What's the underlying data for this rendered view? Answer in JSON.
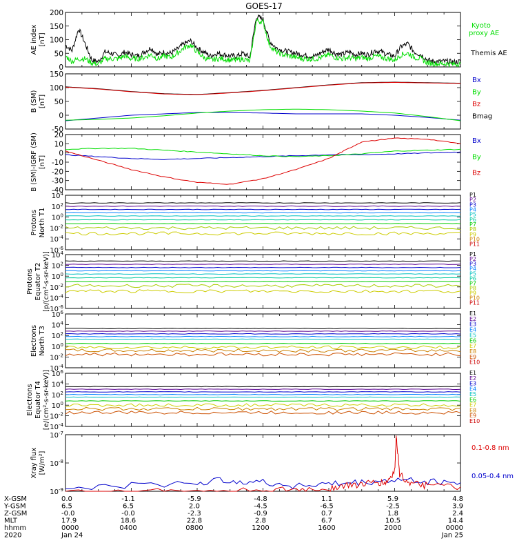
{
  "title": "GOES-17",
  "colors": {
    "black": "#000000",
    "green": "#00dd00",
    "blue": "#0000cc",
    "red": "#dd0000",
    "darkred": "#990000",
    "p_series": [
      "#000000",
      "#5a0090",
      "#0000cc",
      "#0080ff",
      "#00c0c0",
      "#00c8a0",
      "#00cc00",
      "#aacc00",
      "#cccc00",
      "#cc8000",
      "#cc0000"
    ],
    "e_series": [
      "#000000",
      "#5a0090",
      "#0000cc",
      "#0080ff",
      "#00c0c0",
      "#00cc00",
      "#cccc00",
      "#cc8000",
      "#cc5000",
      "#cc0000"
    ]
  },
  "chart_data": [
    {
      "id": "ae",
      "type": "line",
      "ylabel_lines": [
        "AE index",
        "[nT]"
      ],
      "ylim": [
        0,
        200
      ],
      "yticks": [
        "0",
        "50",
        "100",
        "150",
        "200"
      ],
      "legend": [
        {
          "text": "Kyoto",
          "color": "#00dd00"
        },
        {
          "text": "proxy AE",
          "color": "#00dd00"
        },
        {
          "text": "Themis AE",
          "color": "#000000"
        }
      ],
      "series": [
        {
          "name": "Themis AE",
          "color": "#000000",
          "x": [
            0,
            0.4,
            0.8,
            1.2,
            1.6,
            2.0,
            2.4,
            2.8,
            3.2,
            3.6,
            4.0,
            4.4,
            4.8,
            5.2,
            5.6,
            6.0,
            6.4,
            6.8,
            7.2,
            7.6,
            8.0,
            8.4,
            8.8,
            9.2,
            9.6,
            10.0,
            10.4,
            10.8,
            11.2,
            11.6,
            12.0,
            12.4,
            12.8,
            13.2,
            13.6,
            14.0,
            14.4,
            14.8,
            15.2,
            15.6,
            16.0,
            16.4,
            16.8,
            17.2,
            17.6,
            18.0,
            18.4,
            18.8,
            19.2,
            19.6,
            20.0,
            20.4,
            20.8,
            21.2,
            21.6,
            22.0,
            22.4,
            22.8,
            23.2,
            23.6,
            24.0
          ],
          "y": [
            80,
            60,
            140,
            85,
            25,
            20,
            55,
            50,
            40,
            55,
            45,
            40,
            55,
            70,
            45,
            55,
            50,
            65,
            85,
            95,
            70,
            55,
            40,
            50,
            45,
            40,
            40,
            50,
            35,
            185,
            175,
            95,
            70,
            60,
            55,
            50,
            45,
            40,
            40,
            55,
            65,
            50,
            45,
            55,
            45,
            50,
            45,
            60,
            55,
            45,
            40,
            75,
            85,
            55,
            45,
            25,
            20,
            20,
            20,
            18,
            20
          ]
        },
        {
          "name": "Kyoto proxy AE",
          "color": "#00dd00",
          "x": [
            0,
            0.4,
            0.8,
            1.2,
            1.6,
            2.0,
            2.4,
            2.8,
            3.2,
            3.6,
            4.0,
            4.4,
            4.8,
            5.2,
            5.6,
            6.0,
            6.4,
            6.8,
            7.2,
            7.6,
            8.0,
            8.4,
            8.8,
            9.2,
            9.6,
            10.0,
            10.4,
            10.8,
            11.2,
            11.6,
            12.0,
            12.4,
            12.8,
            13.2,
            13.6,
            14.0,
            14.4,
            14.8,
            15.2,
            15.6,
            16.0,
            16.4,
            16.8,
            17.2,
            17.6,
            18.0,
            18.4,
            18.8,
            19.2,
            19.6,
            20.0,
            20.4,
            20.8,
            21.2,
            21.6,
            22.0,
            22.4,
            22.8,
            23.2,
            23.6,
            24.0
          ],
          "y": [
            40,
            20,
            30,
            30,
            15,
            10,
            30,
            30,
            30,
            40,
            30,
            30,
            35,
            45,
            30,
            40,
            35,
            50,
            70,
            80,
            55,
            35,
            25,
            30,
            30,
            25,
            25,
            30,
            20,
            170,
            165,
            80,
            55,
            45,
            40,
            35,
            30,
            30,
            30,
            35,
            45,
            35,
            30,
            35,
            30,
            35,
            30,
            40,
            35,
            30,
            25,
            45,
            50,
            35,
            30,
            15,
            12,
            12,
            12,
            10,
            12
          ]
        }
      ]
    },
    {
      "id": "bsm",
      "type": "line",
      "ylabel_lines": [
        "B (SM)",
        "[nT]"
      ],
      "ylim": [
        -50,
        150
      ],
      "yticks": [
        "-50",
        "0",
        "50",
        "100",
        "150"
      ],
      "legend": [
        {
          "text": "Bx",
          "color": "#0000cc"
        },
        {
          "text": "By",
          "color": "#00dd00"
        },
        {
          "text": "Bz",
          "color": "#dd0000"
        },
        {
          "text": "Bmag",
          "color": "#000000"
        }
      ],
      "series": [
        {
          "name": "Bmag",
          "color": "#000000",
          "x": [
            0,
            2,
            4,
            6,
            8,
            10,
            12,
            14,
            16,
            18,
            20,
            22,
            24
          ],
          "y": [
            103,
            96,
            86,
            78,
            75,
            82,
            90,
            100,
            110,
            118,
            120,
            118,
            116
          ]
        },
        {
          "name": "Bz",
          "color": "#dd0000",
          "x": [
            0,
            2,
            4,
            6,
            8,
            10,
            12,
            14,
            16,
            18,
            20,
            22,
            24
          ],
          "y": [
            102,
            95,
            85,
            77,
            74,
            81,
            89,
            99,
            109,
            117,
            119,
            117,
            115
          ]
        },
        {
          "name": "Bx",
          "color": "#0000cc",
          "x": [
            0,
            2,
            4,
            6,
            8,
            10,
            12,
            14,
            16,
            18,
            20,
            22,
            24
          ],
          "y": [
            -20,
            -10,
            0,
            5,
            10,
            10,
            8,
            5,
            5,
            5,
            0,
            -8,
            -18
          ]
        },
        {
          "name": "By",
          "color": "#00dd00",
          "x": [
            0,
            2,
            4,
            6,
            8,
            10,
            12,
            14,
            16,
            18,
            20,
            22,
            24
          ],
          "y": [
            -18,
            -15,
            -10,
            -2,
            8,
            15,
            20,
            22,
            20,
            15,
            8,
            -5,
            -20
          ]
        }
      ]
    },
    {
      "id": "bigrf",
      "type": "line",
      "ylabel_lines": [
        "B (SM)-IGRF (SM)",
        "[nT]"
      ],
      "ylim": [
        -40,
        20
      ],
      "yticks": [
        "-40",
        "-30",
        "-20",
        "-10",
        "0",
        "10",
        "20"
      ],
      "legend": [
        {
          "text": "Bx",
          "color": "#0000cc"
        },
        {
          "text": "By",
          "color": "#00dd00"
        },
        {
          "text": "Bz",
          "color": "#dd0000"
        }
      ],
      "series": [
        {
          "name": "Bx",
          "color": "#0000cc",
          "x": [
            0,
            2,
            4,
            6,
            8,
            10,
            12,
            14,
            16,
            18,
            20,
            22,
            24
          ],
          "y": [
            -2,
            -4,
            -6,
            -7,
            -6,
            -5,
            -4,
            -3,
            -2,
            -2,
            -1,
            0,
            1
          ]
        },
        {
          "name": "By",
          "color": "#00dd00",
          "x": [
            0,
            2,
            4,
            6,
            8,
            10,
            12,
            14,
            16,
            18,
            20,
            22,
            24
          ],
          "y": [
            4,
            5,
            5,
            3,
            1,
            -1,
            -3,
            -4,
            -3,
            -1,
            2,
            3,
            4
          ]
        },
        {
          "name": "Bz",
          "color": "#dd0000",
          "x": [
            0,
            2,
            4,
            6,
            8,
            10,
            12,
            14,
            16,
            17,
            18,
            20,
            22,
            24
          ],
          "y": [
            2,
            -8,
            -18,
            -26,
            -32,
            -34,
            -28,
            -18,
            -6,
            3,
            12,
            16,
            15,
            10
          ]
        }
      ]
    },
    {
      "id": "protons_t1",
      "type": "line",
      "ylabel_lines": [
        "Protons",
        "North T1"
      ],
      "log": true,
      "ylim_exp": [
        -6,
        4
      ],
      "yticks_exp": [
        -6,
        -4,
        -2,
        0,
        2,
        4
      ],
      "legend_names": [
        "P1",
        "P2",
        "P3",
        "P4",
        "P5",
        "P6",
        "P7",
        "P8",
        "P9",
        "P10",
        "P11"
      ],
      "levels_exp": [
        2.6,
        2.0,
        1.4,
        0.8,
        0.2,
        -0.5,
        -1.2,
        -2.0,
        -3.0,
        null,
        null
      ]
    },
    {
      "id": "protons_t2",
      "type": "line",
      "ylabel_lines": [
        "Protons",
        "Equator T2",
        "[p/(cm²-s-sr-keV)]"
      ],
      "log": true,
      "ylim_exp": [
        -6,
        4
      ],
      "yticks_exp": [
        -6,
        -4,
        -2,
        0,
        2,
        4
      ],
      "legend_names": [
        "P1",
        "P2",
        "P3",
        "P4",
        "P5",
        "P6",
        "P7",
        "P8",
        "P9",
        "P10",
        "P11"
      ],
      "levels_exp": [
        2.8,
        2.2,
        1.6,
        1.0,
        0.4,
        -0.3,
        -1.0,
        -1.8,
        -2.8,
        null,
        null
      ]
    },
    {
      "id": "electrons_t3",
      "type": "line",
      "ylabel_lines": [
        "Electrons",
        "North T3"
      ],
      "log": true,
      "ylim_exp": [
        -4,
        6
      ],
      "yticks_exp": [
        -4,
        -2,
        0,
        2,
        4,
        6
      ],
      "legend_names": [
        "E1",
        "E2",
        "E3",
        "E4",
        "E5",
        "E6",
        "E7",
        "E8",
        "E9",
        "E10"
      ],
      "levels_exp": [
        3.3,
        2.8,
        2.3,
        1.8,
        1.3,
        0.5,
        -0.2,
        -0.8,
        -1.5,
        null
      ]
    },
    {
      "id": "electrons_t4",
      "type": "line",
      "ylabel_lines": [
        "Electrons",
        "Equator T4",
        "[e/(cm²-s-sr-keV)]"
      ],
      "log": true,
      "ylim_exp": [
        -4,
        6
      ],
      "yticks_exp": [
        -4,
        -2,
        0,
        2,
        4,
        6
      ],
      "legend_names": [
        "E1",
        "E2",
        "E3",
        "E4",
        "E5",
        "E6",
        "E7",
        "E8",
        "E9",
        "E10"
      ],
      "levels_exp": [
        3.5,
        3.0,
        2.5,
        2.0,
        1.5,
        0.8,
        0.0,
        -0.7,
        -1.4,
        null
      ]
    },
    {
      "id": "xray",
      "type": "line",
      "ylabel_lines": [
        "Xray flux",
        "[W/m²]"
      ],
      "log": true,
      "ylim_exp": [
        -9,
        -7
      ],
      "yticks_exp": [
        -9,
        -8,
        -7
      ],
      "legend": [
        {
          "text": "0.1-0.8 nm",
          "color": "#dd0000"
        },
        {
          "text": "0.05-0.4 nm",
          "color": "#0000cc"
        }
      ],
      "series": [
        {
          "name": "0.05-0.4 nm",
          "color": "#0000cc",
          "x": [
            0,
            4,
            8,
            10,
            12,
            14,
            16,
            18,
            20,
            22,
            24
          ],
          "y_exp": [
            -8.9,
            -8.8,
            -8.7,
            -8.6,
            -8.7,
            -8.8,
            -8.75,
            -8.7,
            -8.6,
            -8.65,
            -8.7
          ]
        },
        {
          "name": "0.1-0.8 nm",
          "color": "#dd0000",
          "x": [
            0,
            4,
            8,
            12,
            14,
            16,
            17,
            18,
            19,
            19.5,
            20,
            20.1,
            20.3,
            21,
            22,
            24
          ],
          "y_exp": [
            -9.0,
            -9.0,
            -9.0,
            -9.0,
            -8.95,
            -8.9,
            -8.8,
            -8.75,
            -8.7,
            -8.7,
            -8.3,
            -7.0,
            -8.4,
            -8.75,
            -8.8,
            -8.85
          ]
        }
      ]
    }
  ],
  "axis_table": {
    "rows": [
      {
        "label": "X-GSM",
        "values": [
          "0.0",
          "-1.1",
          "-5.9",
          "-4.8",
          "1.1",
          "5.9",
          "4.8"
        ]
      },
      {
        "label": "Y-GSM",
        "values": [
          "6.5",
          "6.5",
          "2.0",
          "-4.5",
          "-6.5",
          "-2.5",
          "3.9"
        ]
      },
      {
        "label": "Z-GSM",
        "values": [
          "-0.0",
          "-0.0",
          "-2.3",
          "-0.9",
          "0.7",
          "1.8",
          "2.4"
        ]
      },
      {
        "label": "MLT",
        "values": [
          "17.9",
          "18.6",
          "22.8",
          "2.8",
          "6.7",
          "10.5",
          "14.4"
        ]
      },
      {
        "label": "hhmm",
        "values": [
          "0000",
          "0400",
          "0800",
          "1200",
          "1600",
          "2000",
          "0000"
        ]
      },
      {
        "label": "2020",
        "values": [
          "Jan 24",
          "",
          "",
          "",
          "",
          "",
          "Jan 25"
        ]
      }
    ]
  }
}
